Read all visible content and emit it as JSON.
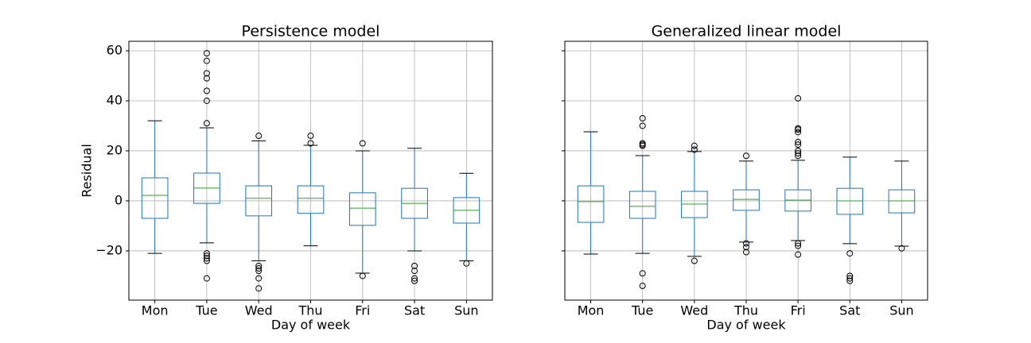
{
  "chart_data": [
    {
      "type": "box",
      "title": "Persistence model",
      "xlabel": "Day of week",
      "ylabel": "Residual",
      "categories": [
        "Mon",
        "Tue",
        "Wed",
        "Thu",
        "Fri",
        "Sat",
        "Sun"
      ],
      "box_color": "#1f77b4",
      "median_color": "#2ca02c",
      "grid": true,
      "ytick_labels": true,
      "ylim": [
        -39.7,
        63.8
      ],
      "yticks": [
        {
          "value": -20,
          "label": "−20"
        },
        0,
        20,
        40,
        60
      ],
      "boxes": [
        {
          "whislo": -21,
          "q1": -7,
          "med": 2.2,
          "q3": 9.2,
          "whishi": 32,
          "fliers": []
        },
        {
          "whislo": -16.8,
          "q1": -1,
          "med": 5.1,
          "q3": 11.1,
          "whishi": 29.2,
          "fliers": [
            59,
            56,
            51,
            49,
            44,
            40,
            31,
            -21,
            -22,
            -23,
            -24,
            -31
          ]
        },
        {
          "whislo": -24,
          "q1": -6,
          "med": 1,
          "q3": 6,
          "whishi": 24,
          "fliers": [
            26,
            -26,
            -27,
            -28,
            -31,
            -35
          ]
        },
        {
          "whislo": -18,
          "q1": -5,
          "med": 1,
          "q3": 6,
          "whishi": 22.2,
          "fliers": [
            26,
            23
          ]
        },
        {
          "whislo": -28.9,
          "q1": -9.8,
          "med": -2.9,
          "q3": 3.2,
          "whishi": 20,
          "fliers": [
            23,
            -30
          ]
        },
        {
          "whislo": -20,
          "q1": -7,
          "med": -1,
          "q3": 5,
          "whishi": 21,
          "fliers": [
            -26,
            -28,
            -31,
            -32
          ]
        },
        {
          "whislo": -24,
          "q1": -8.9,
          "med": -3.8,
          "q3": 1.3,
          "whishi": 11,
          "fliers": [
            -25
          ]
        }
      ]
    },
    {
      "type": "box",
      "title": "Generalized linear model",
      "xlabel": "Day of week",
      "categories": [
        "Mon",
        "Tue",
        "Wed",
        "Thu",
        "Fri",
        "Sat",
        "Sun"
      ],
      "box_color": "#1f77b4",
      "median_color": "#2ca02c",
      "grid": true,
      "ytick_labels": false,
      "ylim": [
        -39.7,
        63.8
      ],
      "yticks": [
        -20,
        0,
        20,
        40,
        60
      ],
      "boxes": [
        {
          "whislo": -21.3,
          "q1": -8.6,
          "med": -0.3,
          "q3": 6,
          "whishi": 27.6,
          "fliers": []
        },
        {
          "whislo": -21,
          "q1": -7,
          "med": -2.2,
          "q3": 3.8,
          "whishi": 18.1,
          "fliers": [
            33,
            30,
            23,
            22.5,
            22,
            -29,
            -34
          ]
        },
        {
          "whislo": -22.2,
          "q1": -6.7,
          "med": -1.3,
          "q3": 3.8,
          "whishi": 19.7,
          "fliers": [
            22,
            20.5,
            -24
          ]
        },
        {
          "whislo": -16.5,
          "q1": -3.8,
          "med": 0.6,
          "q3": 4.4,
          "whishi": 15.9,
          "fliers": [
            18,
            -17,
            -18.5,
            -20.5
          ]
        },
        {
          "whislo": -15.9,
          "q1": -4.1,
          "med": 0.3,
          "q3": 4.4,
          "whishi": 16.2,
          "fliers": [
            41,
            29,
            28.5,
            27.5,
            23.5,
            22.5,
            20,
            19,
            18,
            -17,
            -18,
            -21.5
          ]
        },
        {
          "whislo": -17.1,
          "q1": -5.4,
          "med": 0,
          "q3": 5,
          "whishi": 17.5,
          "fliers": [
            -21,
            -30,
            -31,
            -32
          ]
        },
        {
          "whislo": -18.1,
          "q1": -4.8,
          "med": 0,
          "q3": 4.4,
          "whishi": 15.9,
          "fliers": [
            -19
          ]
        }
      ]
    }
  ]
}
